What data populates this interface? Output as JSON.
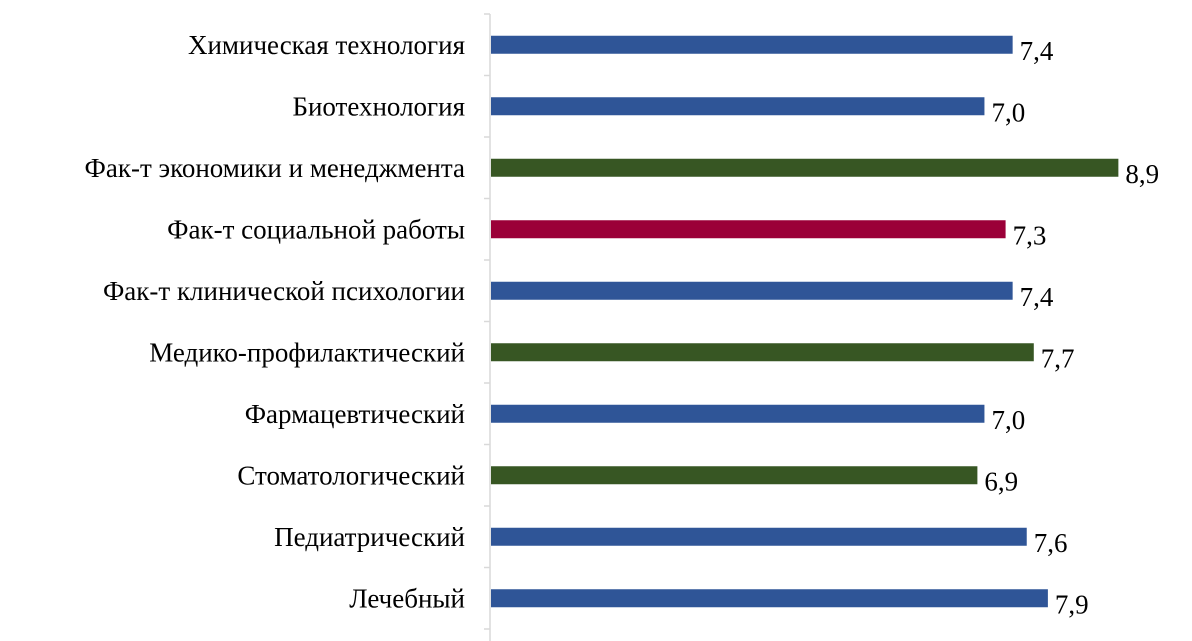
{
  "chart_data": {
    "type": "bar",
    "orientation": "horizontal",
    "categories": [
      "Химическая технология",
      "Биотехнология",
      "Фак-т экономики и менеджмента",
      "Фак-т социальной работы",
      "Фак-т клинической психологии",
      "Медико-профилактический",
      "Фармацевтический",
      "Стоматологический",
      "Педиатрический",
      "Лечебный"
    ],
    "values": [
      7.4,
      7.0,
      8.9,
      7.3,
      7.4,
      7.7,
      7.0,
      6.9,
      7.6,
      7.9
    ],
    "value_labels": [
      "7,4",
      "7,0",
      "8,9",
      "7,3",
      "7,4",
      "7,7",
      "7,0",
      "6,9",
      "7,6",
      "7,9"
    ],
    "bar_colors": [
      "#2f5597",
      "#2f5597",
      "#375623",
      "#9b0038",
      "#2f5597",
      "#375623",
      "#2f5597",
      "#375623",
      "#2f5597",
      "#2f5597"
    ],
    "xlim": [
      0,
      9.15
    ],
    "title": "",
    "xlabel": "",
    "ylabel": "",
    "grid": false,
    "legend": "none"
  }
}
